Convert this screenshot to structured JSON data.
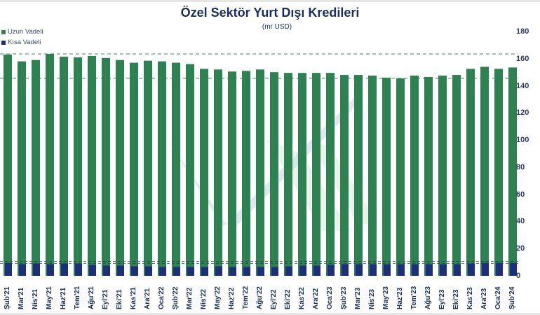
{
  "title": "Özel Sektör Yurt Dışı Kredileri",
  "subtitle": "(mr USD)",
  "legend": [
    {
      "label": "Uzun Vadeli",
      "color": "#2e8150"
    },
    {
      "label": "Kısa Vadeli",
      "color": "#1b2f7a"
    }
  ],
  "colors": {
    "long": "#2e8150",
    "short": "#1b2f7a",
    "dash": "#6d9a7d",
    "text": "#1b2f5a"
  },
  "chart_data": {
    "type": "bar",
    "title": "Özel Sektör Yurt Dışı Kredileri",
    "subtitle": "(mr USD)",
    "xlabel": "",
    "ylabel": "",
    "ylim": [
      0,
      180
    ],
    "yticks": [
      0,
      20,
      40,
      60,
      80,
      100,
      120,
      140,
      160,
      180
    ],
    "y_axis_position": "right",
    "grid": false,
    "legend_position": "top-left",
    "categories": [
      "Şub'21",
      "Mar'21",
      "Nis'21",
      "May'21",
      "Haz'21",
      "Tem'21",
      "Ağu'21",
      "Eyl'21",
      "Eki'21",
      "Kas'21",
      "Ara'21",
      "Oca'22",
      "Şub'22",
      "Mar'22",
      "Nis'22",
      "May'22",
      "Haz'22",
      "Tem'22",
      "Ağu'22",
      "Eyl'22",
      "Eki'22",
      "Kas'22",
      "Ara'22",
      "Oca'23",
      "Şub'23",
      "Mar'23",
      "Nis'23",
      "May'23",
      "Haz'23",
      "Tem'23",
      "Ağu'23",
      "Eyl'23",
      "Eki'23",
      "Kas'23",
      "Ara'23",
      "Oca'24",
      "Şub'24"
    ],
    "series": [
      {
        "name": "Uzun Vadeli",
        "values": [
          163,
          158,
          159,
          163.5,
          161.5,
          161,
          162,
          160.5,
          159,
          157,
          158.5,
          158,
          157,
          156,
          152.5,
          152,
          150.5,
          151,
          152,
          150,
          149.5,
          149.5,
          149.5,
          149.5,
          148,
          148,
          147.5,
          146,
          145.5,
          147.5,
          146.5,
          147.5,
          148,
          152.5,
          154,
          152.5,
          153.5
        ]
      },
      {
        "name": "Kısa Vadeli",
        "values": [
          9.5,
          8.5,
          9,
          8.5,
          9,
          9,
          8,
          7.5,
          7.5,
          7,
          7,
          6.5,
          6.5,
          6.5,
          6.5,
          7,
          6.5,
          6.5,
          6.5,
          6.5,
          7,
          7.5,
          7.5,
          8,
          8.5,
          8.5,
          8.5,
          8.5,
          8.5,
          8.5,
          8.5,
          8.5,
          8.5,
          9,
          9.5,
          9.5,
          9.5
        ]
      }
    ],
    "reference_lines": [
      {
        "value": 163.5,
        "style": "dashed",
        "label": ""
      },
      {
        "value": 145.5,
        "style": "dashed",
        "label": ""
      }
    ]
  }
}
